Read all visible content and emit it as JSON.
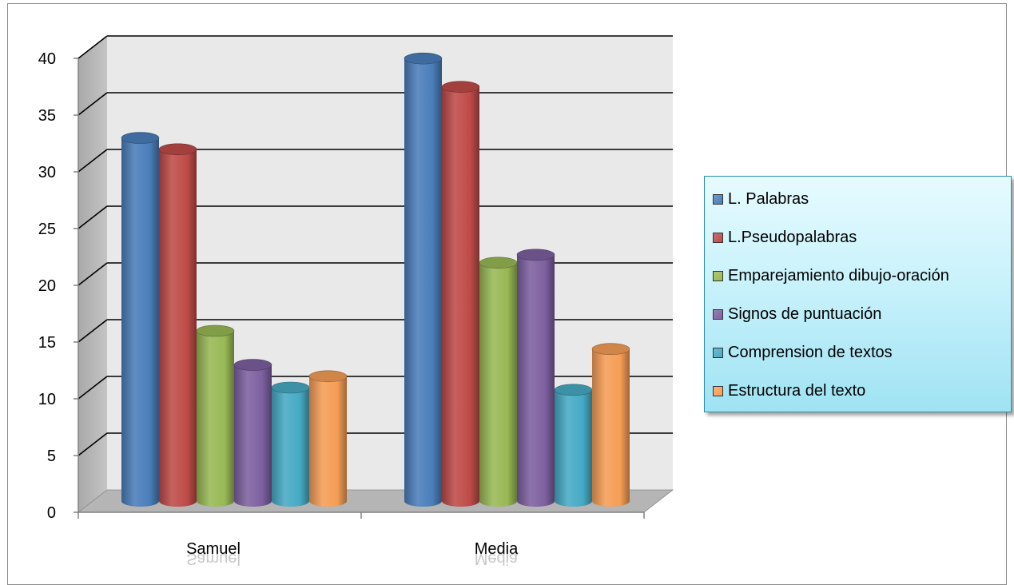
{
  "chart_data": {
    "type": "bar",
    "categories": [
      "Samuel",
      "Media"
    ],
    "series": [
      {
        "name": "L. Palabras",
        "values": [
          32,
          39
        ],
        "color": "#4a7ebb"
      },
      {
        "name": "L.Pseudopalabras",
        "values": [
          31,
          36.5
        ],
        "color": "#be4b48"
      },
      {
        "name": "Emparejamiento dibujo-oración",
        "values": [
          15,
          21
        ],
        "color": "#98b954"
      },
      {
        "name": "Signos de puntuación",
        "values": [
          12,
          21.7
        ],
        "color": "#7d60a0"
      },
      {
        "name": "Comprension de textos",
        "values": [
          10,
          9.8
        ],
        "color": "#46aac5"
      },
      {
        "name": "Estructura del texto",
        "values": [
          11,
          13.4
        ],
        "color": "#f59d56"
      }
    ],
    "ylim": [
      0,
      40
    ],
    "yticks": [
      0,
      5,
      10,
      15,
      20,
      25,
      30,
      35,
      40
    ],
    "grid": true,
    "legend_position": "right",
    "style": "3d-cylinder"
  }
}
